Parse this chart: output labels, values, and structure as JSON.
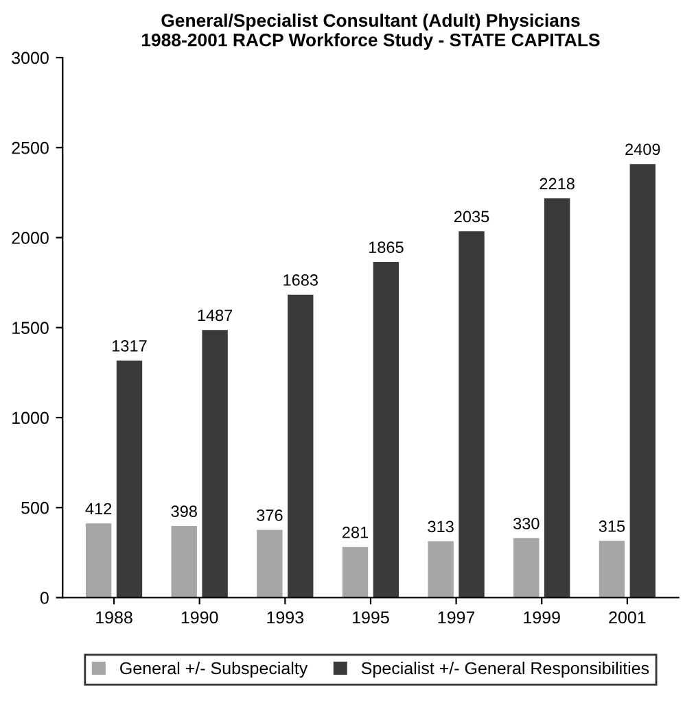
{
  "chart_data": {
    "type": "bar",
    "title": "General/Specialist Consultant (Adult) Physicians\n1988-2001 RACP Workforce Study - STATE CAPITALS",
    "categories": [
      "1988",
      "1990",
      "1993",
      "1995",
      "1997",
      "1999",
      "2001"
    ],
    "series": [
      {
        "name": "General +/- Subspecialty",
        "color": "#a6a6a6",
        "values": [
          412,
          398,
          376,
          281,
          313,
          330,
          315
        ]
      },
      {
        "name": "Specialist +/- General Responsibilities",
        "color": "#3a3a3a",
        "values": [
          1317,
          1487,
          1683,
          1865,
          2035,
          2218,
          2409
        ]
      }
    ],
    "ylim": [
      0,
      3000
    ],
    "yticks": [
      0,
      500,
      1000,
      1500,
      2000,
      2500,
      3000
    ],
    "grid": false,
    "legend": "bottom",
    "data_labels": true
  }
}
